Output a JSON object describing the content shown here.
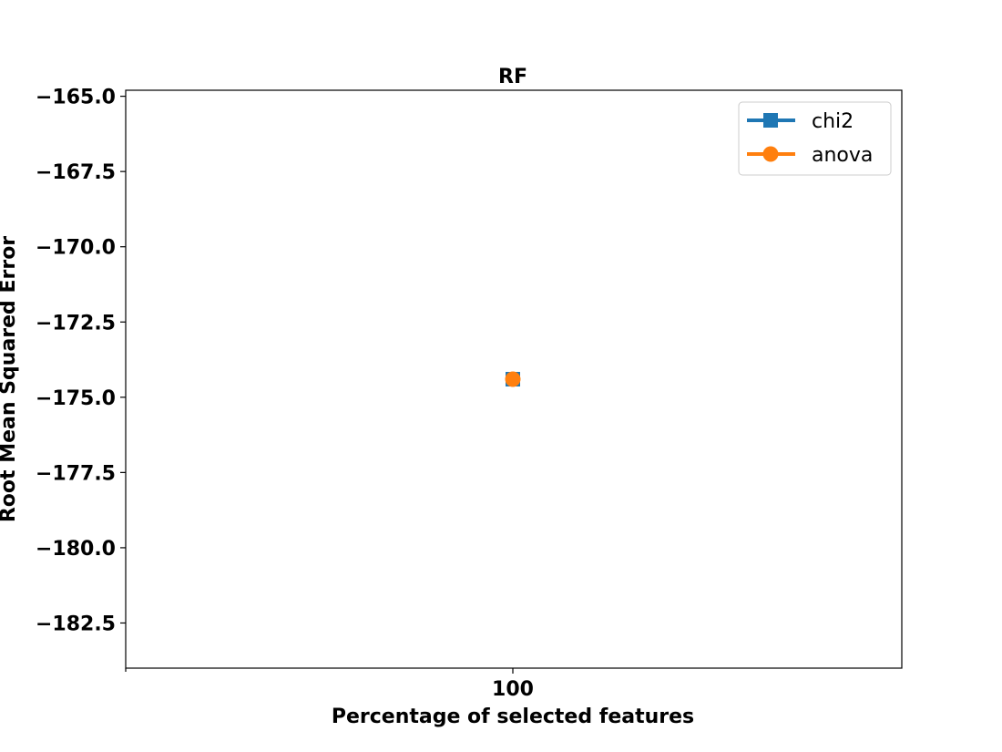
{
  "chart_data": {
    "type": "line",
    "title": "RF",
    "xlabel": "Percentage of selected features",
    "ylabel": "Root Mean Squared Error",
    "categories": [
      "100"
    ],
    "x": [
      100
    ],
    "series": [
      {
        "name": "chi2",
        "values": [
          -174.4
        ],
        "color": "#1f77b4",
        "marker": "square"
      },
      {
        "name": "anova",
        "values": [
          -174.4
        ],
        "color": "#ff7f0e",
        "marker": "circle"
      }
    ],
    "ylim": [
      -184.0,
      -164.8
    ],
    "yticks": [
      -165.0,
      -167.5,
      -170.0,
      -172.5,
      -175.0,
      -177.5,
      -180.0,
      -182.5
    ],
    "ytick_labels": [
      "−165.0",
      "−167.5",
      "−170.0",
      "−172.5",
      "−175.0",
      "−177.5",
      "−180.0",
      "−182.5"
    ],
    "xtick_labels": [
      "100"
    ],
    "grid": false,
    "legend_position": "top-right"
  }
}
